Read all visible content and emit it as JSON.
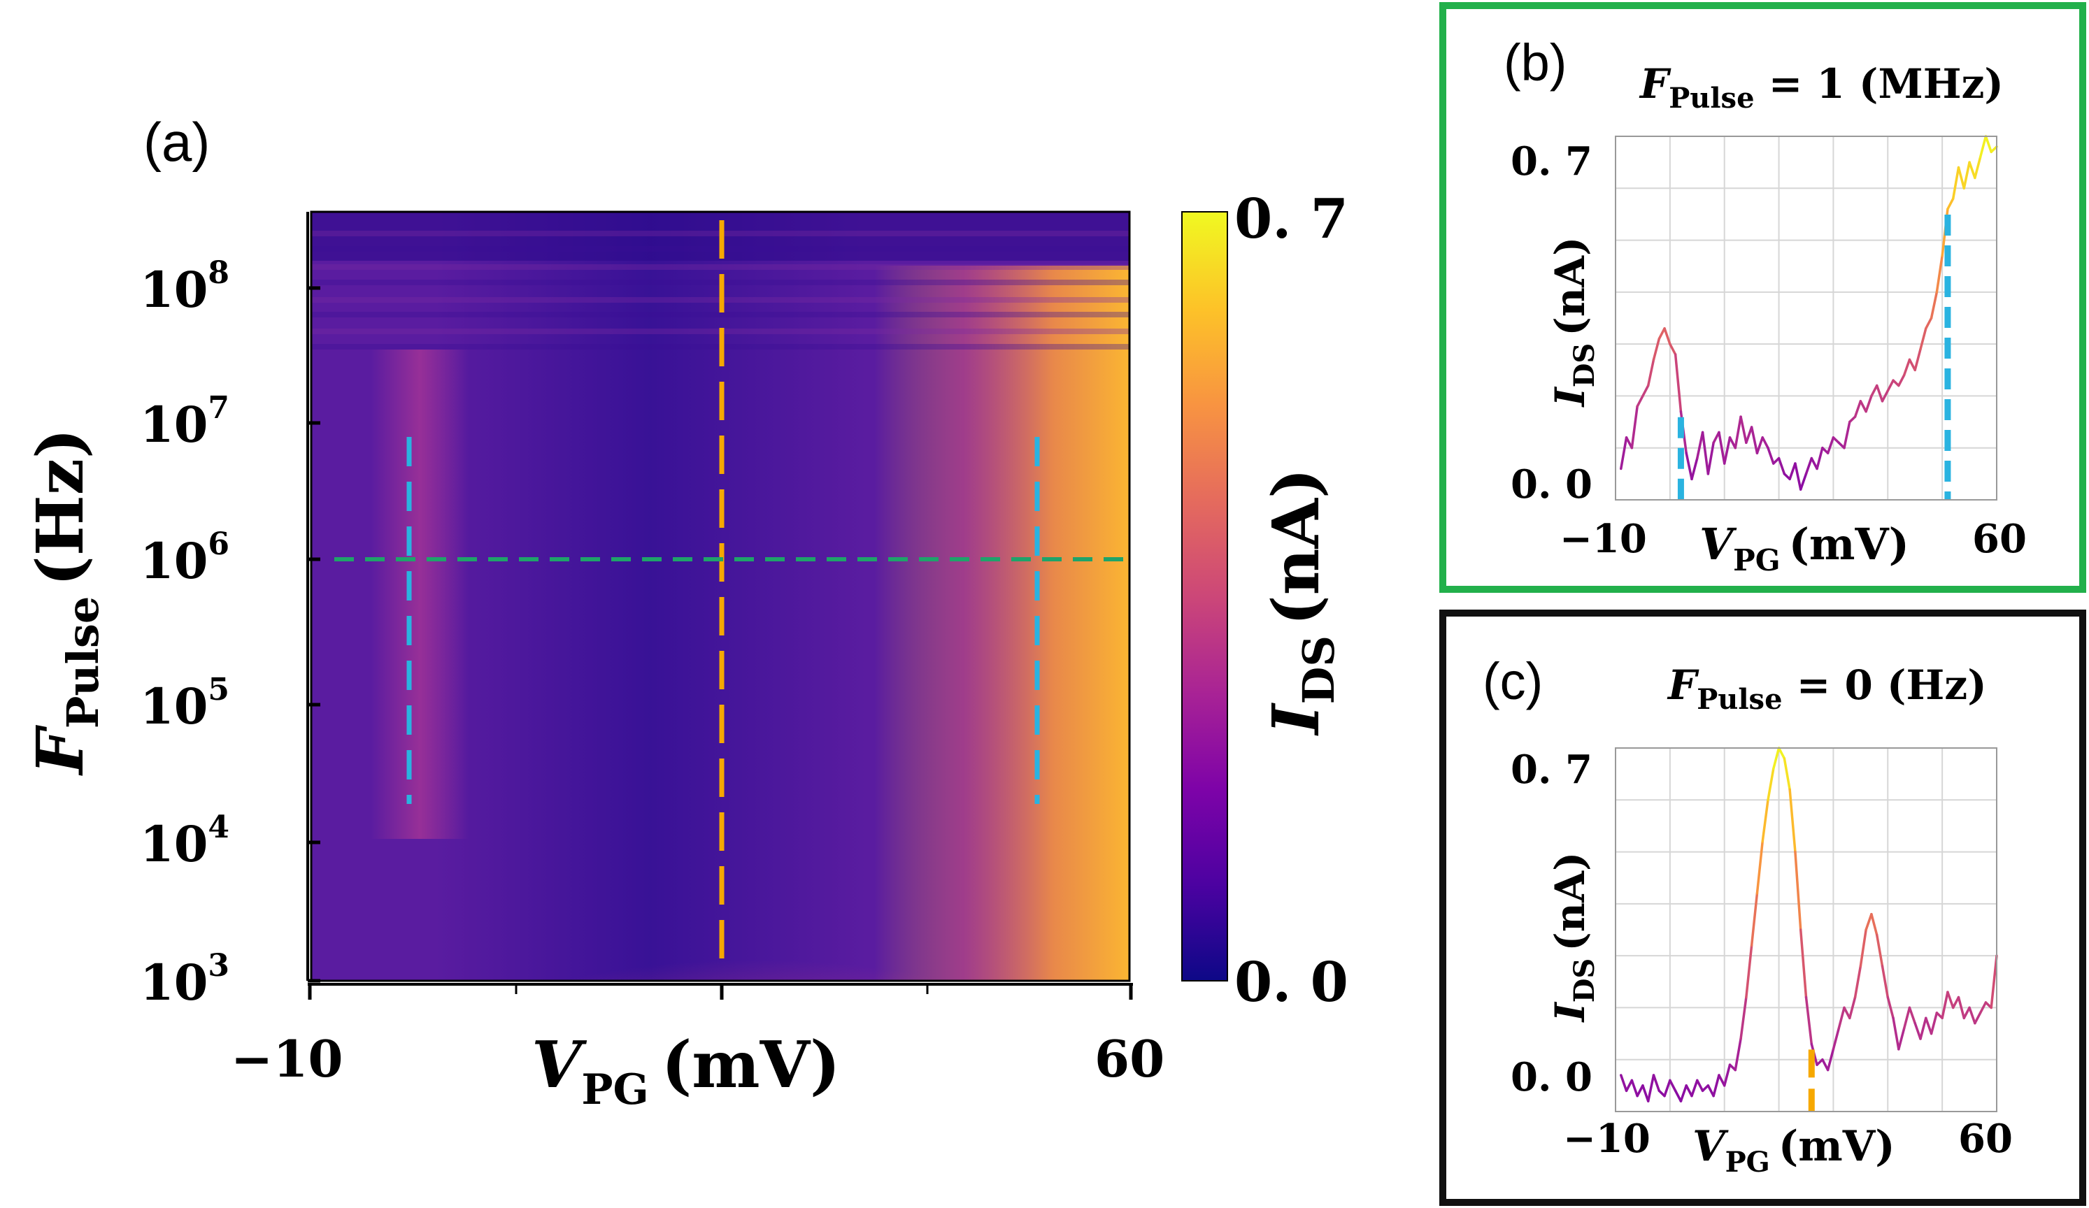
{
  "colors": {
    "cmap": [
      "#0d0887",
      "#4c02a1",
      "#7e03a8",
      "#a92395",
      "#cc4778",
      "#e56b5d",
      "#f89441",
      "#fdc328",
      "#f0f921"
    ],
    "heatmap_base": "#5a1ca0",
    "panel_b_border": "#22b04b",
    "panel_c_border": "#111111",
    "cyan_dash": "#2ab3e0",
    "orange_dash": "#f6a800",
    "green_dash": "#1fa36a"
  },
  "chart_data": [
    {
      "panel_label": "(a)",
      "type": "heatmap",
      "xlabel_main": "V",
      "xlabel_sub": "PG",
      "xlabel_unit": "(mV)",
      "ylabel_main": "F",
      "ylabel_sub": "Pulse",
      "ylabel_unit": "(Hz)",
      "xlim": [
        -10,
        60
      ],
      "ylim": [
        1000,
        300000000
      ],
      "yscale": "log",
      "x_ticklabels": [
        "−10",
        "60"
      ],
      "y_ticklabels": [
        {
          "base": "10",
          "exp": "3"
        },
        {
          "base": "10",
          "exp": "4"
        },
        {
          "base": "10",
          "exp": "5"
        },
        {
          "base": "10",
          "exp": "6"
        },
        {
          "base": "10",
          "exp": "7"
        },
        {
          "base": "10",
          "exp": "8"
        }
      ],
      "colorbar": {
        "label_main": "I",
        "label_sub": "DS",
        "label_unit": "(nA)",
        "ticklabels": [
          "0. 7",
          "0. 0"
        ],
        "range": [
          0.0,
          0.7
        ]
      },
      "features": [
        {
          "description_ref": "left ridge",
          "x": -1.5,
          "y_range": [
            20000,
            8000000
          ],
          "value": 0.42
        },
        {
          "description_ref": "right band",
          "x": 54,
          "y_range": [
            1000,
            100000000
          ],
          "value": 0.7
        },
        {
          "description_ref": "center low-frequency peak",
          "x": 25,
          "y_range": [
            1000,
            5000
          ],
          "value": 0.5
        }
      ],
      "markers": {
        "vertical_cyan_x": [
          -1.5,
          44
        ],
        "vertical_cyan_y_range": [
          20000,
          8000000
        ],
        "vertical_orange_x": 25,
        "horizontal_green_y": 1000000
      }
    },
    {
      "panel_label": "(b)",
      "type": "line",
      "title_main": "F",
      "title_sub": "Pulse",
      "title_rest": " = 1 (MHz)",
      "xlabel_main": "V",
      "xlabel_sub": "PG",
      "xlabel_unit": "(mV)",
      "ylabel_main": "I",
      "ylabel_sub": "DS",
      "ylabel_unit": "(nA)",
      "xlim": [
        -10,
        60
      ],
      "ylim": [
        0.0,
        0.7
      ],
      "x_ticklabels": [
        "−10",
        "60"
      ],
      "y_ticklabels": [
        "0. 7",
        "0. 0"
      ],
      "grid": true,
      "x": [
        -9,
        -8,
        -7,
        -6,
        -5,
        -4,
        -3,
        -2,
        -1,
        0,
        1,
        2,
        3,
        4,
        5,
        6,
        7,
        8,
        9,
        10,
        11,
        12,
        13,
        14,
        15,
        16,
        17,
        18,
        19,
        20,
        21,
        22,
        23,
        24,
        25,
        26,
        27,
        28,
        29,
        30,
        31,
        32,
        33,
        34,
        35,
        36,
        37,
        38,
        39,
        40,
        41,
        42,
        43,
        44,
        45,
        46,
        47,
        48,
        49,
        50,
        51,
        52,
        53,
        54,
        55,
        56,
        57,
        58,
        59,
        60
      ],
      "y": [
        0.06,
        0.12,
        0.1,
        0.18,
        0.2,
        0.22,
        0.27,
        0.31,
        0.33,
        0.3,
        0.28,
        0.17,
        0.09,
        0.04,
        0.08,
        0.13,
        0.05,
        0.11,
        0.13,
        0.07,
        0.12,
        0.1,
        0.16,
        0.11,
        0.14,
        0.09,
        0.12,
        0.1,
        0.07,
        0.08,
        0.05,
        0.04,
        0.07,
        0.02,
        0.05,
        0.08,
        0.06,
        0.1,
        0.09,
        0.12,
        0.11,
        0.1,
        0.15,
        0.16,
        0.19,
        0.17,
        0.2,
        0.22,
        0.19,
        0.21,
        0.23,
        0.22,
        0.24,
        0.27,
        0.25,
        0.29,
        0.33,
        0.35,
        0.4,
        0.47,
        0.56,
        0.58,
        0.64,
        0.6,
        0.65,
        0.62,
        0.66,
        0.7,
        0.67,
        0.68
      ],
      "markers": {
        "vertical_cyan_x": [
          2,
          51
        ]
      }
    },
    {
      "panel_label": "(c)",
      "type": "line",
      "title_main": "F",
      "title_sub": "Pulse",
      "title_rest": " = 0 (Hz)",
      "xlabel_main": "V",
      "xlabel_sub": "PG",
      "xlabel_unit": "(mV)",
      "ylabel_main": "I",
      "ylabel_sub": "DS",
      "ylabel_unit": "(nA)",
      "xlim": [
        -10,
        60
      ],
      "ylim": [
        0.0,
        0.7
      ],
      "x_ticklabels": [
        "−10",
        "60"
      ],
      "y_ticklabels": [
        "0. 7",
        "0. 0"
      ],
      "grid": true,
      "x": [
        -9,
        -8,
        -7,
        -6,
        -5,
        -4,
        -3,
        -2,
        -1,
        0,
        1,
        2,
        3,
        4,
        5,
        6,
        7,
        8,
        9,
        10,
        11,
        12,
        13,
        14,
        15,
        16,
        17,
        18,
        19,
        20,
        21,
        22,
        23,
        24,
        25,
        26,
        27,
        28,
        29,
        30,
        31,
        32,
        33,
        34,
        35,
        36,
        37,
        38,
        39,
        40,
        41,
        42,
        43,
        44,
        45,
        46,
        47,
        48,
        49,
        50,
        51,
        52,
        53,
        54,
        55,
        56,
        57,
        58,
        59,
        60
      ],
      "y": [
        0.07,
        0.04,
        0.06,
        0.03,
        0.05,
        0.02,
        0.07,
        0.04,
        0.03,
        0.06,
        0.04,
        0.02,
        0.05,
        0.03,
        0.06,
        0.04,
        0.05,
        0.03,
        0.07,
        0.05,
        0.09,
        0.08,
        0.14,
        0.22,
        0.32,
        0.42,
        0.52,
        0.6,
        0.66,
        0.7,
        0.68,
        0.62,
        0.5,
        0.35,
        0.22,
        0.13,
        0.09,
        0.1,
        0.08,
        0.12,
        0.16,
        0.2,
        0.18,
        0.22,
        0.28,
        0.35,
        0.38,
        0.34,
        0.28,
        0.22,
        0.18,
        0.12,
        0.16,
        0.2,
        0.17,
        0.14,
        0.18,
        0.15,
        0.19,
        0.18,
        0.23,
        0.2,
        0.22,
        0.18,
        0.2,
        0.17,
        0.19,
        0.21,
        0.2,
        0.3
      ],
      "markers": {
        "vertical_orange_x": 26
      }
    }
  ]
}
